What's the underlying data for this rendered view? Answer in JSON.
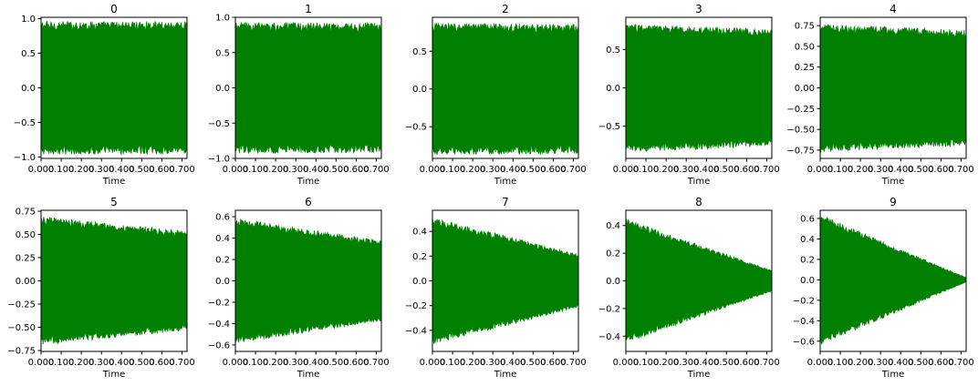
{
  "figure": {
    "background": "#ffffff",
    "series_color": "#008000"
  },
  "chart_data": [
    {
      "type": "line",
      "title": "0",
      "xlabel": "Time",
      "ylabel": "",
      "xlim": [
        0,
        0.725
      ],
      "ylim": [
        -1.02,
        1.02
      ],
      "xticks": [
        0,
        0.1,
        0.2,
        0.3,
        0.4,
        0.5,
        0.6,
        0.7
      ],
      "xtick_labels": [
        "0.000",
        "0.100",
        "0.200",
        "0.300",
        "0.400",
        "0.500",
        "0.600",
        "0.700"
      ],
      "yticks": [
        -1.0,
        -0.5,
        0.0,
        0.5,
        1.0
      ],
      "ytick_labels": [
        "−1.0",
        "−0.5",
        "0.0",
        "0.5",
        "1.0"
      ],
      "envelope": {
        "x": [
          0,
          0.725
        ],
        "upper": [
          0.9,
          0.9
        ],
        "lower": [
          -0.9,
          -0.9
        ]
      }
    },
    {
      "type": "line",
      "title": "1",
      "xlabel": "Time",
      "ylabel": "",
      "xlim": [
        0,
        0.725
      ],
      "ylim": [
        -1.0,
        1.0
      ],
      "xticks": [
        0,
        0.1,
        0.2,
        0.3,
        0.4,
        0.5,
        0.6,
        0.7
      ],
      "xtick_labels": [
        "0.000",
        "0.100",
        "0.200",
        "0.300",
        "0.400",
        "0.500",
        "0.600",
        "0.700"
      ],
      "yticks": [
        -1.0,
        -0.5,
        0.0,
        0.5,
        1.0
      ],
      "ytick_labels": [
        "−1.0",
        "−0.5",
        "0.0",
        "0.5",
        "1.0"
      ],
      "envelope": {
        "x": [
          0,
          0.725
        ],
        "upper": [
          0.87,
          0.86
        ],
        "lower": [
          -0.87,
          -0.86
        ]
      }
    },
    {
      "type": "line",
      "title": "2",
      "xlabel": "Time",
      "ylabel": "",
      "xlim": [
        0,
        0.725
      ],
      "ylim": [
        -0.92,
        0.95
      ],
      "xticks": [
        0,
        0.1,
        0.2,
        0.3,
        0.4,
        0.5,
        0.6,
        0.7
      ],
      "xtick_labels": [
        "0.000",
        "0.100",
        "0.200",
        "0.300",
        "0.400",
        "0.500",
        "0.600",
        "0.700"
      ],
      "yticks": [
        -0.5,
        0.0,
        0.5
      ],
      "ytick_labels": [
        "−0.5",
        "0.0",
        "0.5"
      ],
      "envelope": {
        "x": [
          0,
          0.725
        ],
        "upper": [
          0.82,
          0.8
        ],
        "lower": [
          -0.82,
          -0.8
        ]
      }
    },
    {
      "type": "line",
      "title": "3",
      "xlabel": "Time",
      "ylabel": "",
      "xlim": [
        0,
        0.725
      ],
      "ylim": [
        -0.92,
        0.92
      ],
      "xticks": [
        0,
        0.1,
        0.2,
        0.3,
        0.4,
        0.5,
        0.6,
        0.7
      ],
      "xtick_labels": [
        "0.000",
        "0.100",
        "0.200",
        "0.300",
        "0.400",
        "0.500",
        "0.600",
        "0.700"
      ],
      "yticks": [
        -0.5,
        0.0,
        0.5
      ],
      "ytick_labels": [
        "−0.5",
        "0.0",
        "0.5"
      ],
      "envelope": {
        "x": [
          0,
          0.725
        ],
        "upper": [
          0.78,
          0.72
        ],
        "lower": [
          -0.78,
          -0.72
        ]
      }
    },
    {
      "type": "line",
      "title": "4",
      "xlabel": "Time",
      "ylabel": "",
      "xlim": [
        0,
        0.725
      ],
      "ylim": [
        -0.85,
        0.85
      ],
      "xticks": [
        0,
        0.1,
        0.2,
        0.3,
        0.4,
        0.5,
        0.6,
        0.7
      ],
      "xtick_labels": [
        "0.000",
        "0.100",
        "0.200",
        "0.300",
        "0.400",
        "0.500",
        "0.600",
        "0.700"
      ],
      "yticks": [
        -0.75,
        -0.5,
        -0.25,
        0.0,
        0.25,
        0.5,
        0.75
      ],
      "ytick_labels": [
        "−0.75",
        "−0.50",
        "−0.25",
        "0.00",
        "0.25",
        "0.50",
        "0.75"
      ],
      "envelope": {
        "x": [
          0,
          0.725
        ],
        "upper": [
          0.72,
          0.65
        ],
        "lower": [
          -0.72,
          -0.65
        ]
      }
    },
    {
      "type": "line",
      "title": "5",
      "xlabel": "Time",
      "ylabel": "",
      "xlim": [
        0,
        0.725
      ],
      "ylim": [
        -0.76,
        0.76
      ],
      "xticks": [
        0,
        0.1,
        0.2,
        0.3,
        0.4,
        0.5,
        0.6,
        0.7
      ],
      "xtick_labels": [
        "0.000",
        "0.100",
        "0.200",
        "0.300",
        "0.400",
        "0.500",
        "0.600",
        "0.700"
      ],
      "yticks": [
        -0.75,
        -0.5,
        -0.25,
        0.0,
        0.25,
        0.5,
        0.75
      ],
      "ytick_labels": [
        "−0.75",
        "−0.50",
        "−0.25",
        "0.00",
        "0.25",
        "0.50",
        "0.75"
      ],
      "envelope": {
        "x": [
          0,
          0.725
        ],
        "upper": [
          0.65,
          0.5
        ],
        "lower": [
          -0.65,
          -0.5
        ]
      }
    },
    {
      "type": "line",
      "title": "6",
      "xlabel": "Time",
      "ylabel": "",
      "xlim": [
        0,
        0.725
      ],
      "ylim": [
        -0.66,
        0.66
      ],
      "xticks": [
        0,
        0.1,
        0.2,
        0.3,
        0.4,
        0.5,
        0.6,
        0.7
      ],
      "xtick_labels": [
        "0.000",
        "0.100",
        "0.200",
        "0.300",
        "0.400",
        "0.500",
        "0.600",
        "0.700"
      ],
      "yticks": [
        -0.6,
        -0.4,
        -0.2,
        0.0,
        0.2,
        0.4,
        0.6
      ],
      "ytick_labels": [
        "−0.6",
        "−0.4",
        "−0.2",
        "0.0",
        "0.2",
        "0.4",
        "0.6"
      ],
      "envelope": {
        "x": [
          0,
          0.725
        ],
        "upper": [
          0.55,
          0.35
        ],
        "lower": [
          -0.55,
          -0.35
        ]
      }
    },
    {
      "type": "line",
      "title": "7",
      "xlabel": "Time",
      "ylabel": "",
      "xlim": [
        0,
        0.725
      ],
      "ylim": [
        -0.57,
        0.57
      ],
      "xticks": [
        0,
        0.1,
        0.2,
        0.3,
        0.4,
        0.5,
        0.6,
        0.7
      ],
      "xtick_labels": [
        "0.000",
        "0.100",
        "0.200",
        "0.300",
        "0.400",
        "0.500",
        "0.600",
        "0.700"
      ],
      "yticks": [
        -0.4,
        -0.2,
        0.0,
        0.2,
        0.4
      ],
      "ytick_labels": [
        "−0.4",
        "−0.2",
        "0.0",
        "0.2",
        "0.4"
      ],
      "envelope": {
        "x": [
          0,
          0.725
        ],
        "upper": [
          0.48,
          0.2
        ],
        "lower": [
          -0.48,
          -0.2
        ]
      }
    },
    {
      "type": "line",
      "title": "8",
      "xlabel": "Time",
      "ylabel": "",
      "xlim": [
        0,
        0.725
      ],
      "ylim": [
        -0.51,
        0.51
      ],
      "xticks": [
        0,
        0.1,
        0.2,
        0.3,
        0.4,
        0.5,
        0.6,
        0.7
      ],
      "xtick_labels": [
        "0.000",
        "0.100",
        "0.200",
        "0.300",
        "0.400",
        "0.500",
        "0.600",
        "0.700"
      ],
      "yticks": [
        -0.4,
        -0.2,
        0.0,
        0.2,
        0.4
      ],
      "ytick_labels": [
        "−0.4",
        "−0.2",
        "0.0",
        "0.2",
        "0.4"
      ],
      "envelope": {
        "x": [
          0,
          0.725
        ],
        "upper": [
          0.42,
          0.07
        ],
        "lower": [
          -0.42,
          -0.07
        ]
      }
    },
    {
      "type": "line",
      "title": "9",
      "xlabel": "Time",
      "ylabel": "",
      "xlim": [
        0,
        0.725
      ],
      "ylim": [
        -0.7,
        0.68
      ],
      "xticks": [
        0,
        0.1,
        0.2,
        0.3,
        0.4,
        0.5,
        0.6,
        0.7
      ],
      "xtick_labels": [
        "0.000",
        "0.100",
        "0.200",
        "0.300",
        "0.400",
        "0.500",
        "0.600",
        "0.700"
      ],
      "yticks": [
        -0.6,
        -0.4,
        -0.2,
        0.0,
        0.2,
        0.4,
        0.6
      ],
      "ytick_labels": [
        "−0.6",
        "−0.4",
        "−0.2",
        "0.0",
        "0.2",
        "0.4",
        "0.6"
      ],
      "envelope": {
        "x": [
          0,
          0.725
        ],
        "upper": [
          0.6,
          0.02
        ],
        "lower": [
          -0.6,
          -0.02
        ]
      }
    }
  ]
}
